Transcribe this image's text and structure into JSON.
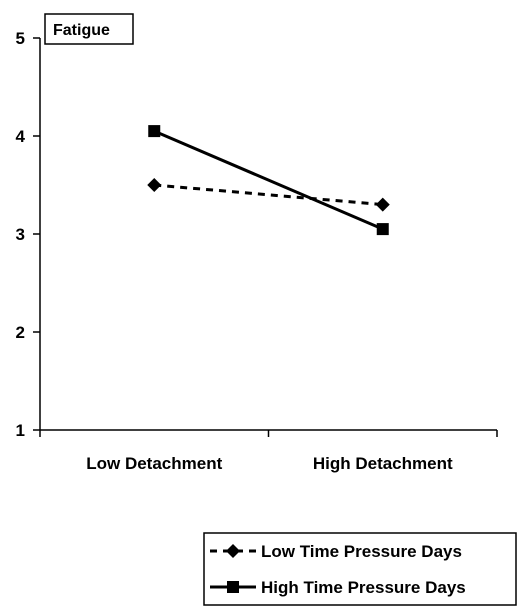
{
  "chart_data": {
    "type": "line",
    "title": "Fatigue",
    "xlabel": "",
    "ylabel": "",
    "categories": [
      "Low Detachment",
      "High Detachment"
    ],
    "ylim": [
      1,
      5
    ],
    "yticks": [
      "1",
      "2",
      "3",
      "4",
      "5"
    ],
    "grid": false,
    "legend_placement": "bottom-right",
    "series": [
      {
        "name": "Low Time Pressure Days",
        "values": [
          3.5,
          3.3
        ],
        "line": "dashed",
        "marker": "diamond"
      },
      {
        "name": "High Time Pressure Days",
        "values": [
          4.05,
          3.05
        ],
        "line": "solid",
        "marker": "square"
      }
    ]
  },
  "colors": {
    "line": "#000000",
    "background": "#ffffff"
  }
}
